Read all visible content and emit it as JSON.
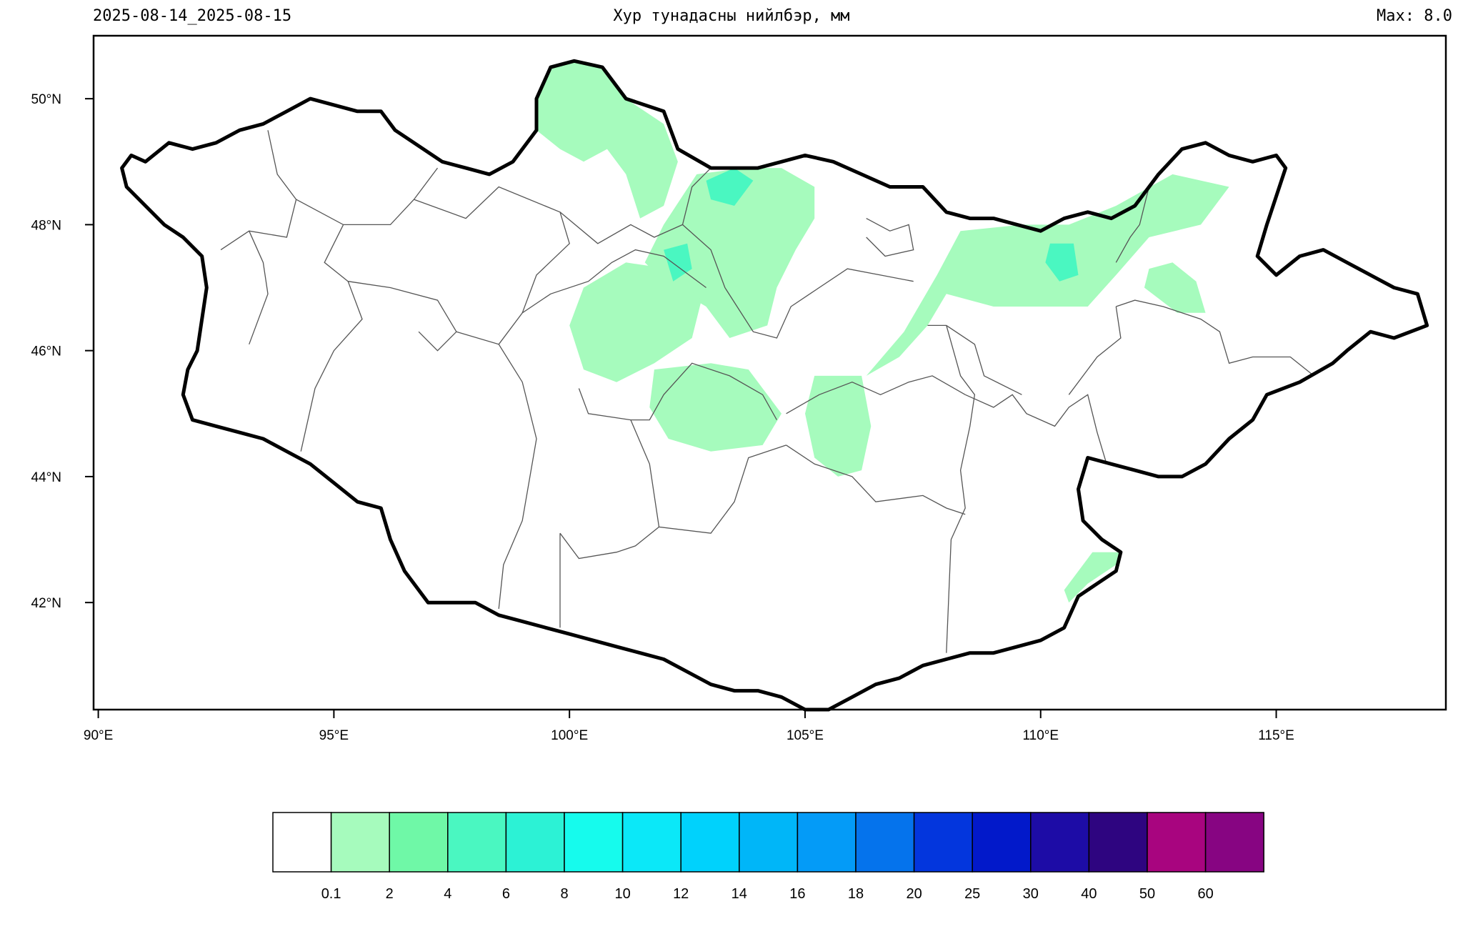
{
  "header": {
    "date_range": "2025-08-14_2025-08-15",
    "title": "Хур тунадасны нийлбэр, мм",
    "max_label": "Max: 8.0"
  },
  "map": {
    "lon_range": [
      89.9,
      118.6
    ],
    "lat_range": [
      40.3,
      51.0
    ],
    "lon_ticks": [
      {
        "value": 90,
        "label": "90°E"
      },
      {
        "value": 95,
        "label": "95°E"
      },
      {
        "value": 100,
        "label": "100°E"
      },
      {
        "value": 105,
        "label": "105°E"
      },
      {
        "value": 110,
        "label": "110°E"
      },
      {
        "value": 115,
        "label": "115°E"
      }
    ],
    "lat_ticks": [
      {
        "value": 42,
        "label": "42°N"
      },
      {
        "value": 44,
        "label": "44°N"
      },
      {
        "value": 46,
        "label": "46°N"
      },
      {
        "value": 48,
        "label": "48°N"
      },
      {
        "value": 50,
        "label": "50°N"
      }
    ],
    "border_color": "#000000",
    "province_color": "#555555"
  },
  "colorbar": {
    "colors": [
      "#ffffff",
      "#a6fbbd",
      "#6ff8a7",
      "#4af7c1",
      "#2cf2d5",
      "#16fbed",
      "#0be8f8",
      "#00d2fc",
      "#00b6f8",
      "#049bf7",
      "#0573ec",
      "#0336dd",
      "#0219ca",
      "#1d0ca6",
      "#2e0580",
      "#a8057f",
      "#870582"
    ],
    "labels": [
      "0.1",
      "2",
      "4",
      "6",
      "8",
      "10",
      "12",
      "14",
      "16",
      "18",
      "20",
      "25",
      "30",
      "40",
      "50",
      "60"
    ]
  },
  "precip_regions": [
    {
      "name": "north-khuvsgul",
      "level": 1,
      "points": [
        [
          100.1,
          50.6
        ],
        [
          100.7,
          50.5
        ],
        [
          101.2,
          50.0
        ],
        [
          102.0,
          49.6
        ],
        [
          102.3,
          49.0
        ],
        [
          102.0,
          48.3
        ],
        [
          101.5,
          48.1
        ],
        [
          101.2,
          48.8
        ],
        [
          100.8,
          49.2
        ],
        [
          100.3,
          49.0
        ],
        [
          99.8,
          49.2
        ],
        [
          99.3,
          49.5
        ],
        [
          99.3,
          50.0
        ],
        [
          99.6,
          50.5
        ]
      ]
    },
    {
      "name": "selenge-bulgan",
      "level": 1,
      "points": [
        [
          102.7,
          48.8
        ],
        [
          103.7,
          48.9
        ],
        [
          104.5,
          48.9
        ],
        [
          105.2,
          48.6
        ],
        [
          105.2,
          48.1
        ],
        [
          104.8,
          47.6
        ],
        [
          104.4,
          47.0
        ],
        [
          104.2,
          46.4
        ],
        [
          103.4,
          46.2
        ],
        [
          102.9,
          46.7
        ],
        [
          102.0,
          47.1
        ],
        [
          101.6,
          47.4
        ],
        [
          102.0,
          48.0
        ]
      ]
    },
    {
      "name": "arkhangai",
      "level": 1,
      "points": [
        [
          100.0,
          46.4
        ],
        [
          100.3,
          47.0
        ],
        [
          101.2,
          47.4
        ],
        [
          102.1,
          47.3
        ],
        [
          102.8,
          46.8
        ],
        [
          102.6,
          46.2
        ],
        [
          101.8,
          45.8
        ],
        [
          101.0,
          45.5
        ],
        [
          100.3,
          45.7
        ]
      ]
    },
    {
      "name": "uvurkhangai",
      "level": 1,
      "points": [
        [
          101.8,
          45.7
        ],
        [
          103.0,
          45.8
        ],
        [
          103.8,
          45.7
        ],
        [
          104.5,
          45.0
        ],
        [
          104.1,
          44.5
        ],
        [
          103.0,
          44.4
        ],
        [
          102.1,
          44.6
        ],
        [
          101.7,
          45.1
        ]
      ]
    },
    {
      "name": "dundgovi",
      "level": 1,
      "points": [
        [
          105.2,
          45.6
        ],
        [
          106.2,
          45.6
        ],
        [
          106.4,
          44.8
        ],
        [
          106.2,
          44.1
        ],
        [
          105.7,
          44.0
        ],
        [
          105.2,
          44.3
        ],
        [
          105.0,
          45.0
        ]
      ]
    },
    {
      "name": "tuv-khentii",
      "level": 1,
      "points": [
        [
          106.3,
          45.6
        ],
        [
          107.1,
          46.3
        ],
        [
          107.8,
          47.2
        ],
        [
          108.3,
          47.9
        ],
        [
          109.6,
          48.0
        ],
        [
          110.6,
          48.0
        ],
        [
          111.6,
          48.3
        ],
        [
          112.8,
          48.8
        ],
        [
          114.0,
          48.6
        ],
        [
          113.4,
          48.0
        ],
        [
          112.3,
          47.8
        ],
        [
          111.6,
          47.2
        ],
        [
          111.0,
          46.7
        ],
        [
          109.0,
          46.7
        ],
        [
          108.0,
          46.9
        ],
        [
          107.6,
          46.4
        ],
        [
          107.0,
          45.9
        ]
      ]
    },
    {
      "name": "dornod-spot",
      "level": 1,
      "points": [
        [
          112.2,
          47.0
        ],
        [
          112.9,
          46.6
        ],
        [
          113.5,
          46.6
        ],
        [
          113.3,
          47.1
        ],
        [
          112.8,
          47.4
        ],
        [
          112.3,
          47.3
        ]
      ]
    },
    {
      "name": "sukhbaatar-south",
      "level": 1,
      "points": [
        [
          110.5,
          42.2
        ],
        [
          111.1,
          42.8
        ],
        [
          111.7,
          42.8
        ],
        [
          111.6,
          42.6
        ],
        [
          111.0,
          42.3
        ],
        [
          110.6,
          42.0
        ]
      ]
    },
    {
      "name": "selenge-core",
      "level": 3,
      "points": [
        [
          102.9,
          48.7
        ],
        [
          103.5,
          48.9
        ],
        [
          103.9,
          48.7
        ],
        [
          103.5,
          48.3
        ],
        [
          103.0,
          48.4
        ]
      ]
    },
    {
      "name": "khentii-core",
      "level": 3,
      "points": [
        [
          110.2,
          47.7
        ],
        [
          110.7,
          47.7
        ],
        [
          110.8,
          47.2
        ],
        [
          110.4,
          47.1
        ],
        [
          110.1,
          47.4
        ]
      ]
    },
    {
      "name": "arkhangai-core",
      "level": 3,
      "points": [
        [
          102.0,
          47.6
        ],
        [
          102.5,
          47.7
        ],
        [
          102.6,
          47.3
        ],
        [
          102.2,
          47.1
        ]
      ]
    }
  ],
  "national_border": [
    [
      91.0,
      49.0
    ],
    [
      91.5,
      49.3
    ],
    [
      92.0,
      49.2
    ],
    [
      92.5,
      49.3
    ],
    [
      93.0,
      49.5
    ],
    [
      93.5,
      49.6
    ],
    [
      94.0,
      49.8
    ],
    [
      94.5,
      50.0
    ],
    [
      95.0,
      49.9
    ],
    [
      95.5,
      49.8
    ],
    [
      96.0,
      49.8
    ],
    [
      96.3,
      49.5
    ],
    [
      96.7,
      49.3
    ],
    [
      97.3,
      49.0
    ],
    [
      97.8,
      48.9
    ],
    [
      98.3,
      48.8
    ],
    [
      98.8,
      49.0
    ],
    [
      99.3,
      49.5
    ],
    [
      99.3,
      50.0
    ],
    [
      99.6,
      50.5
    ],
    [
      100.1,
      50.6
    ],
    [
      100.7,
      50.5
    ],
    [
      101.2,
      50.0
    ],
    [
      102.0,
      49.8
    ],
    [
      102.3,
      49.2
    ],
    [
      103.0,
      48.9
    ],
    [
      103.5,
      48.9
    ],
    [
      104.0,
      48.9
    ],
    [
      104.5,
      49.0
    ],
    [
      105.0,
      49.1
    ],
    [
      105.6,
      49.0
    ],
    [
      106.2,
      48.8
    ],
    [
      106.8,
      48.6
    ],
    [
      107.5,
      48.6
    ],
    [
      108.0,
      48.2
    ],
    [
      108.5,
      48.1
    ],
    [
      109.0,
      48.1
    ],
    [
      109.5,
      48.0
    ],
    [
      110.0,
      47.9
    ],
    [
      110.5,
      48.1
    ],
    [
      111.0,
      48.2
    ],
    [
      111.5,
      48.1
    ],
    [
      112.0,
      48.3
    ],
    [
      112.5,
      48.8
    ],
    [
      113.0,
      49.2
    ],
    [
      113.5,
      49.3
    ],
    [
      114.0,
      49.1
    ],
    [
      114.5,
      49.0
    ],
    [
      115.0,
      49.1
    ],
    [
      115.2,
      48.9
    ],
    [
      114.8,
      48.0
    ],
    [
      114.6,
      47.5
    ],
    [
      115.0,
      47.2
    ],
    [
      115.5,
      47.5
    ],
    [
      116.0,
      47.6
    ],
    [
      116.5,
      47.4
    ],
    [
      117.0,
      47.2
    ],
    [
      117.5,
      47.0
    ],
    [
      118.0,
      46.9
    ],
    [
      118.2,
      46.4
    ],
    [
      117.5,
      46.2
    ],
    [
      117.0,
      46.3
    ],
    [
      116.5,
      46.0
    ],
    [
      116.2,
      45.8
    ],
    [
      115.5,
      45.5
    ],
    [
      114.8,
      45.3
    ],
    [
      114.5,
      44.9
    ],
    [
      114.0,
      44.6
    ],
    [
      113.5,
      44.2
    ],
    [
      113.0,
      44.0
    ],
    [
      112.5,
      44.0
    ],
    [
      112.0,
      44.1
    ],
    [
      111.5,
      44.2
    ],
    [
      111.0,
      44.3
    ],
    [
      110.8,
      43.8
    ],
    [
      110.9,
      43.3
    ],
    [
      111.3,
      43.0
    ],
    [
      111.7,
      42.8
    ],
    [
      111.6,
      42.5
    ],
    [
      111.2,
      42.3
    ],
    [
      110.8,
      42.1
    ],
    [
      110.5,
      41.6
    ],
    [
      110.0,
      41.4
    ],
    [
      109.5,
      41.3
    ],
    [
      109.0,
      41.2
    ],
    [
      108.5,
      41.2
    ],
    [
      108.0,
      41.1
    ],
    [
      107.5,
      41.0
    ],
    [
      107.0,
      40.8
    ],
    [
      106.5,
      40.7
    ],
    [
      106.0,
      40.5
    ],
    [
      105.5,
      40.3
    ],
    [
      105.0,
      40.3
    ],
    [
      104.5,
      40.5
    ],
    [
      104.0,
      40.6
    ],
    [
      103.5,
      40.6
    ],
    [
      103.0,
      40.7
    ],
    [
      102.5,
      40.9
    ],
    [
      102.0,
      41.1
    ],
    [
      101.5,
      41.2
    ],
    [
      101.0,
      41.3
    ],
    [
      100.5,
      41.4
    ],
    [
      100.0,
      41.5
    ],
    [
      99.5,
      41.6
    ],
    [
      99.0,
      41.7
    ],
    [
      98.5,
      41.8
    ],
    [
      98.0,
      42.0
    ],
    [
      97.5,
      42.0
    ],
    [
      97.0,
      42.0
    ],
    [
      96.5,
      42.5
    ],
    [
      96.2,
      43.0
    ],
    [
      96.0,
      43.5
    ],
    [
      95.5,
      43.6
    ],
    [
      95.0,
      43.9
    ],
    [
      94.5,
      44.2
    ],
    [
      94.0,
      44.4
    ],
    [
      93.5,
      44.6
    ],
    [
      93.0,
      44.7
    ],
    [
      92.5,
      44.8
    ],
    [
      92.0,
      44.9
    ],
    [
      91.8,
      45.3
    ],
    [
      91.9,
      45.7
    ],
    [
      92.1,
      46.0
    ],
    [
      92.2,
      46.5
    ],
    [
      92.3,
      47.0
    ],
    [
      92.2,
      47.5
    ],
    [
      91.8,
      47.8
    ],
    [
      91.4,
      48.0
    ],
    [
      91.0,
      48.3
    ],
    [
      90.6,
      48.6
    ],
    [
      90.5,
      48.9
    ],
    [
      90.7,
      49.1
    ]
  ]
}
